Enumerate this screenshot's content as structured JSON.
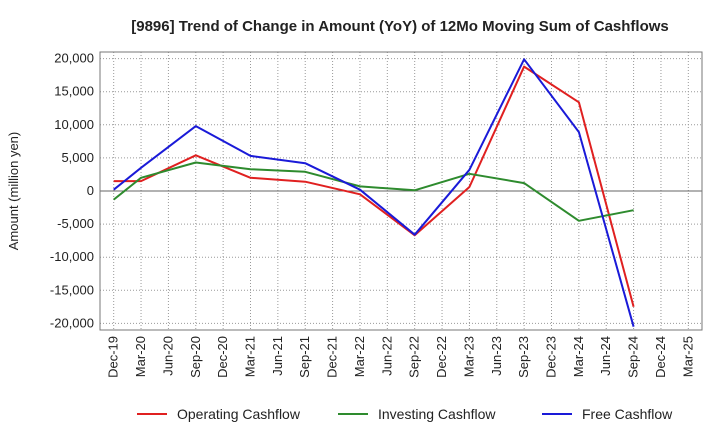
{
  "chart_data": {
    "type": "line",
    "title": "[9896]  Trend of Change in Amount (YoY) of 12Mo Moving Sum of Cashflows",
    "xlabel": "",
    "ylabel": "Amount (million yen)",
    "ylim": [
      -21000,
      21000
    ],
    "yticks": [
      20000,
      15000,
      10000,
      5000,
      0,
      -5000,
      -10000,
      -15000,
      -20000
    ],
    "ytick_labels": [
      "20,000",
      "15,000",
      "10,000",
      "5,000",
      "0",
      "-5,000",
      "-10,000",
      "-15,000",
      "-20,000"
    ],
    "categories": [
      "Dec-19",
      "Mar-20",
      "Jun-20",
      "Sep-20",
      "Dec-20",
      "Mar-21",
      "Jun-21",
      "Sep-21",
      "Dec-21",
      "Mar-22",
      "Jun-22",
      "Sep-22",
      "Dec-22",
      "Mar-23",
      "Jun-23",
      "Sep-23",
      "Dec-23",
      "Mar-24",
      "Jun-24",
      "Sep-24",
      "Dec-24",
      "Mar-25"
    ],
    "grid": true,
    "legend_position": "bottom",
    "series": [
      {
        "name": "Operating Cashflow",
        "color": "#e02020",
        "values": [
          1500,
          1500,
          null,
          5400,
          null,
          2000,
          null,
          1400,
          null,
          -500,
          null,
          -6700,
          null,
          600,
          null,
          18800,
          null,
          13400,
          null,
          -17500,
          null,
          null
        ]
      },
      {
        "name": "Investing Cashflow",
        "color": "#2e8b2e",
        "values": [
          -1300,
          2000,
          null,
          4300,
          null,
          3300,
          null,
          2900,
          null,
          700,
          null,
          100,
          null,
          2600,
          null,
          1200,
          null,
          -4500,
          null,
          -2900,
          null,
          null
        ]
      },
      {
        "name": "Free Cashflow",
        "color": "#1a1ad8",
        "values": [
          200,
          3500,
          null,
          9800,
          null,
          5300,
          null,
          4200,
          null,
          200,
          null,
          -6600,
          null,
          3200,
          null,
          19900,
          null,
          8900,
          null,
          -20500,
          null,
          null
        ]
      }
    ]
  }
}
